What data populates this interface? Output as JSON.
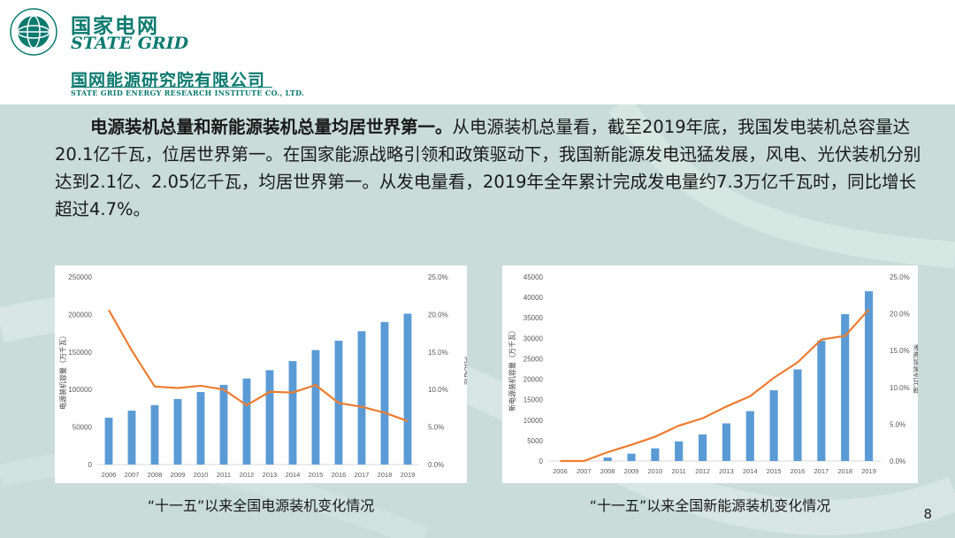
{
  "header": {
    "logo_cn": "国家电网",
    "logo_en": "STATE GRID",
    "institute_cn": "国网能源研究院有限公司",
    "institute_en": "STATE GRID ENERGY RESEARCH INSTITUTE CO., LTD."
  },
  "paragraph": {
    "bold_lead": "电源装机总量和新能源装机总量均居世界第一。",
    "body": "从电源装机总量看，截至2019年底，我国发电装机总容量达20.1亿千瓦，位居世界第一。在国家能源战略引领和政策驱动下，我国新能源发电迅猛发展，风电、光伏装机分别达到2.1亿、2.05亿千瓦，均居世界第一。从发电量看，2019年全年累计完成发电量约7.3万亿千瓦时，同比增长超过4.7%。"
  },
  "captions": {
    "left": "“十一五”以来全国电源装机变化情况",
    "right": "“十一五”以来全国新能源装机变化情况"
  },
  "page_number": "8",
  "colors": {
    "bar": "#5b9bd5",
    "line": "#ed7d31",
    "brand": "#0a7a6f"
  },
  "chart_data": [
    {
      "type": "bar",
      "categories": [
        "2006",
        "2007",
        "2008",
        "2009",
        "2010",
        "2011",
        "2012",
        "2013",
        "2014",
        "2015",
        "2016",
        "2017",
        "2018",
        "2019"
      ],
      "series": [
        {
          "axis": "left",
          "kind": "bar",
          "values": [
            62370,
            71822,
            79273,
            87407,
            96641,
            106253,
            114676,
            125768,
            137887,
            152527,
            165051,
            177708,
            190012,
            201066
          ]
        },
        {
          "axis": "right",
          "kind": "line",
          "values": [
            20.6,
            15.2,
            10.4,
            10.2,
            10.5,
            10.0,
            7.9,
            9.7,
            9.6,
            10.6,
            8.2,
            7.7,
            6.9,
            5.8
          ]
        }
      ],
      "ylabel": "电源装机容量（万千瓦）",
      "y2label": "同比增速",
      "ylim": [
        0,
        250000
      ],
      "yticks": [
        "0",
        "50000",
        "100000",
        "150000",
        "200000",
        "250000"
      ],
      "y2lim": [
        0,
        25
      ],
      "y2ticks": [
        "0.0%",
        "5.0%",
        "10.0%",
        "15.0%",
        "20.0%",
        "25.0%"
      ],
      "grid": false
    },
    {
      "type": "bar",
      "categories": [
        "2006",
        "2007",
        "2008",
        "2009",
        "2010",
        "2011",
        "2012",
        "2013",
        "2014",
        "2015",
        "2016",
        "2017",
        "2018",
        "2019"
      ],
      "series": [
        {
          "axis": "left",
          "kind": "bar",
          "values": [
            0,
            0,
            850,
            1800,
            3100,
            4800,
            6500,
            9200,
            12200,
            17300,
            22400,
            29400,
            35900,
            41500
          ]
        },
        {
          "axis": "right",
          "kind": "line",
          "values": [
            0.0,
            0.0,
            1.2,
            2.2,
            3.3,
            4.8,
            5.8,
            7.4,
            8.8,
            11.3,
            13.4,
            16.5,
            17.0,
            20.6
          ]
        }
      ],
      "ylabel": "新电源装机容量（万千瓦）",
      "y2label": "新能源装机比重",
      "ylim": [
        0,
        45000
      ],
      "yticks": [
        "0",
        "5000",
        "10000",
        "15000",
        "20000",
        "25000",
        "30000",
        "35000",
        "40000",
        "45000"
      ],
      "y2lim": [
        0,
        25
      ],
      "y2ticks": [
        "0.0%",
        "5.0%",
        "10.0%",
        "15.0%",
        "20.0%",
        "25.0%"
      ],
      "grid": false
    }
  ]
}
